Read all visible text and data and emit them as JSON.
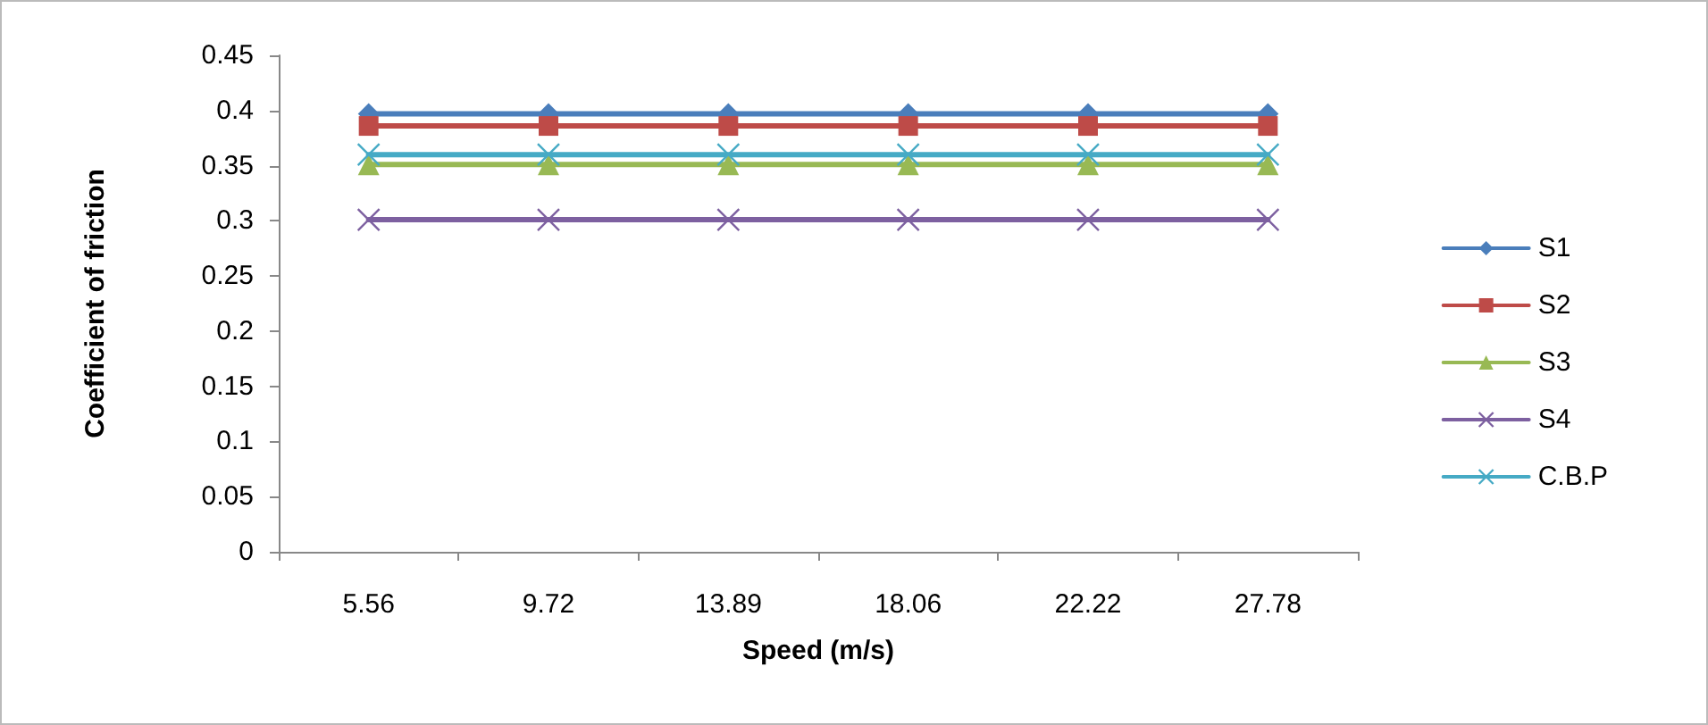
{
  "chart_data": {
    "type": "line",
    "xlabel": "Speed (m/s)",
    "ylabel": "Coefficient of friction",
    "categories": [
      "5.56",
      "9.72",
      "13.89",
      "18.06",
      "22.22",
      "27.78"
    ],
    "series": [
      {
        "name": "S1",
        "color": "#4a7ebb",
        "marker": "diamond",
        "values": [
          0.397,
          0.397,
          0.397,
          0.397,
          0.397,
          0.397
        ]
      },
      {
        "name": "S2",
        "color": "#be4b48",
        "marker": "square",
        "values": [
          0.386,
          0.386,
          0.386,
          0.386,
          0.386,
          0.386
        ]
      },
      {
        "name": "S3",
        "color": "#98b954",
        "marker": "triangle",
        "values": [
          0.351,
          0.351,
          0.351,
          0.351,
          0.351,
          0.351
        ]
      },
      {
        "name": "S4",
        "color": "#7d60a0",
        "marker": "cross",
        "values": [
          0.301,
          0.301,
          0.301,
          0.301,
          0.301,
          0.301
        ]
      },
      {
        "name": "C.B.P",
        "color": "#46aac5",
        "marker": "cross",
        "values": [
          0.36,
          0.36,
          0.36,
          0.36,
          0.36,
          0.36
        ]
      }
    ],
    "ylim": [
      0,
      0.45
    ],
    "yticks": [
      0,
      0.05,
      0.1,
      0.15,
      0.2,
      0.25,
      0.3,
      0.35,
      0.4,
      0.45
    ],
    "grid": false,
    "legend": "right"
  }
}
